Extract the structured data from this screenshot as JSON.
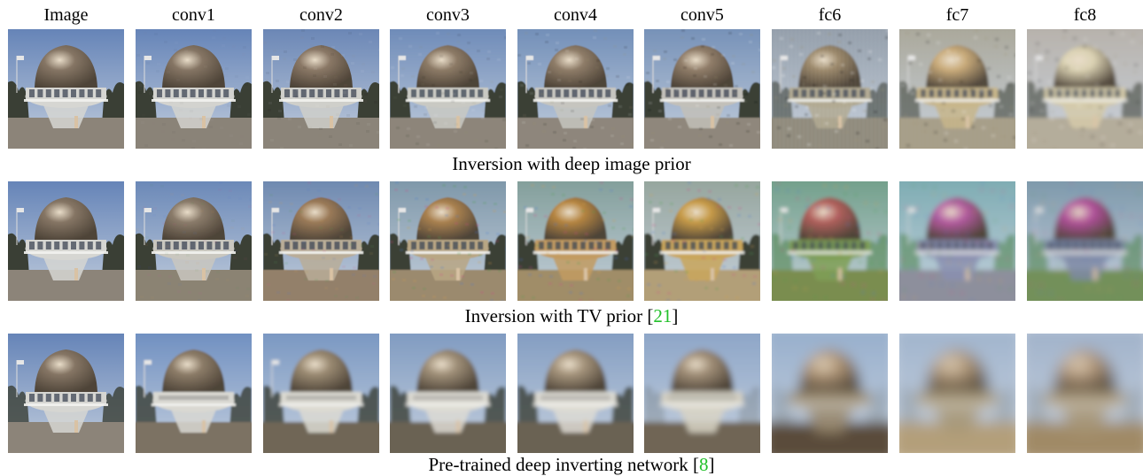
{
  "columns": [
    "Image",
    "conv1",
    "conv2",
    "conv3",
    "conv4",
    "conv5",
    "fc6",
    "fc7",
    "fc8"
  ],
  "rows": [
    {
      "caption_text": "Inversion with deep image prior",
      "caption_pre": "",
      "caption_ref": "",
      "caption_post": "",
      "style": "dip"
    },
    {
      "caption_text": "",
      "caption_pre": "Inversion with TV prior [",
      "caption_ref": "21",
      "caption_post": "]",
      "style": "tv"
    },
    {
      "caption_text": "",
      "caption_pre": "Pre-trained deep inverting network [",
      "caption_ref": "8",
      "caption_post": "]",
      "style": "net"
    }
  ],
  "colors": {
    "citation": "#22c02a",
    "sky": "#6f8fbf",
    "dome": "#8c7a64",
    "ground": "#8f8677"
  }
}
